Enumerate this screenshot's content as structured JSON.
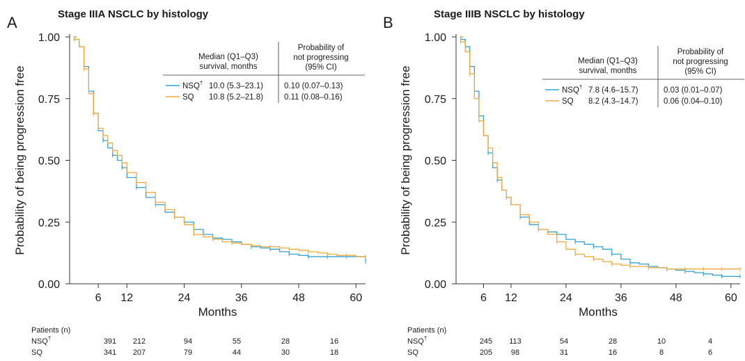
{
  "colors": {
    "NSQ": "#2ea3d6",
    "SQ": "#f2a93b",
    "axis": "#333333",
    "text": "#1a1a1a"
  },
  "chart_data": [
    {
      "type": "line",
      "panel": "A",
      "title": "Stage IIIA NSCLC by histology",
      "xlabel": "Months",
      "ylabel": "Probability of being progression free",
      "xlim": [
        0,
        62
      ],
      "ylim": [
        0,
        1
      ],
      "xticks": [
        "6",
        "12",
        "24",
        "36",
        "48",
        "60"
      ],
      "yticks": [
        "0.00",
        "0.25",
        "0.50",
        "0.75",
        "1.00"
      ],
      "table": {
        "col1_header": [
          "Median (Q1–Q3)",
          "survival, months"
        ],
        "col2_header": [
          "Probability of",
          "not progressing",
          "(95% CI)"
        ],
        "rows": [
          {
            "label": "NSQ",
            "sup": "†",
            "median": "10.0 (5.3–23.1)",
            "prob": "0.10 (0.07–0.13)"
          },
          {
            "label": "SQ",
            "sup": "",
            "median": "10.8 (5.2–21.8)",
            "prob": "0.11 (0.08–0.16)"
          }
        ]
      },
      "risk_table": {
        "header": "Patients (n)",
        "rows": [
          {
            "label": "NSQ",
            "sup": "†",
            "values": [
              "391",
              "212",
              "94",
              "55",
              "28",
              "16"
            ]
          },
          {
            "label": "SQ",
            "sup": "",
            "values": [
              "341",
              "207",
              "79",
              "44",
              "30",
              "18"
            ]
          }
        ]
      },
      "series": [
        {
          "name": "NSQ",
          "x": [
            0,
            1,
            2,
            3,
            4,
            5,
            6,
            7,
            8,
            9,
            10,
            11,
            12,
            14,
            16,
            18,
            20,
            22,
            24,
            26,
            28,
            30,
            32,
            34,
            36,
            38,
            40,
            42,
            44,
            46,
            48,
            50,
            52,
            54,
            56,
            58,
            60,
            62
          ],
          "y": [
            1.0,
            0.99,
            0.96,
            0.88,
            0.78,
            0.69,
            0.62,
            0.58,
            0.55,
            0.52,
            0.5,
            0.47,
            0.43,
            0.39,
            0.35,
            0.32,
            0.29,
            0.27,
            0.25,
            0.22,
            0.2,
            0.185,
            0.18,
            0.17,
            0.16,
            0.15,
            0.145,
            0.14,
            0.13,
            0.12,
            0.115,
            0.11,
            0.11,
            0.11,
            0.11,
            0.11,
            0.11,
            0.09
          ]
        },
        {
          "name": "SQ",
          "x": [
            0,
            1,
            2,
            3,
            4,
            5,
            6,
            7,
            8,
            9,
            10,
            11,
            12,
            14,
            16,
            18,
            20,
            22,
            24,
            26,
            28,
            30,
            32,
            34,
            36,
            38,
            40,
            42,
            44,
            46,
            48,
            50,
            52,
            54,
            56,
            58,
            60,
            62
          ],
          "y": [
            1.0,
            0.99,
            0.96,
            0.87,
            0.77,
            0.69,
            0.63,
            0.6,
            0.57,
            0.54,
            0.52,
            0.49,
            0.45,
            0.41,
            0.37,
            0.33,
            0.3,
            0.27,
            0.24,
            0.2,
            0.19,
            0.18,
            0.17,
            0.165,
            0.16,
            0.155,
            0.15,
            0.15,
            0.145,
            0.14,
            0.135,
            0.13,
            0.125,
            0.12,
            0.115,
            0.115,
            0.11,
            0.11
          ]
        }
      ]
    },
    {
      "type": "line",
      "panel": "B",
      "title": "Stage IIIB NSCLC by histology",
      "xlabel": "Months",
      "ylabel": "Probability of being progression free",
      "xlim": [
        0,
        62
      ],
      "ylim": [
        0,
        1
      ],
      "xticks": [
        "6",
        "12",
        "24",
        "36",
        "48",
        "60"
      ],
      "yticks": [
        "0.00",
        "0.25",
        "0.50",
        "0.75",
        "1.00"
      ],
      "table": {
        "col1_header": [
          "Median (Q1–Q3)",
          "survival, months"
        ],
        "col2_header": [
          "Probability of",
          "not progressing",
          "(95% CI)"
        ],
        "rows": [
          {
            "label": "NSQ",
            "sup": "†",
            "median": "7.8 (4.6–15.7)",
            "prob": "0.03 (0.01–0.07)"
          },
          {
            "label": "SQ",
            "sup": "",
            "median": "8.2 (4.3–14.7)",
            "prob": "0.06 (0.04–0.10)"
          }
        ]
      },
      "risk_table": {
        "header": "Patients (n)",
        "rows": [
          {
            "label": "NSQ",
            "sup": "†",
            "values": [
              "245",
              "113",
              "54",
              "28",
              "10",
              "4"
            ]
          },
          {
            "label": "SQ",
            "sup": "",
            "values": [
              "205",
              "98",
              "31",
              "16",
              "8",
              "6"
            ]
          }
        ]
      },
      "series": [
        {
          "name": "NSQ",
          "x": [
            0,
            1,
            2,
            3,
            4,
            5,
            6,
            7,
            8,
            9,
            10,
            11,
            12,
            14,
            16,
            18,
            20,
            22,
            24,
            26,
            28,
            30,
            32,
            34,
            36,
            38,
            40,
            42,
            44,
            46,
            48,
            50,
            52,
            54,
            56,
            58,
            60,
            62
          ],
          "y": [
            1.0,
            0.99,
            0.96,
            0.88,
            0.78,
            0.68,
            0.6,
            0.53,
            0.47,
            0.42,
            0.38,
            0.35,
            0.32,
            0.27,
            0.24,
            0.22,
            0.21,
            0.2,
            0.18,
            0.17,
            0.16,
            0.15,
            0.14,
            0.12,
            0.1,
            0.085,
            0.08,
            0.07,
            0.065,
            0.06,
            0.055,
            0.05,
            0.045,
            0.04,
            0.035,
            0.03,
            0.03,
            0.03
          ]
        },
        {
          "name": "SQ",
          "x": [
            0,
            1,
            2,
            3,
            4,
            5,
            6,
            7,
            8,
            9,
            10,
            11,
            12,
            14,
            16,
            18,
            20,
            22,
            24,
            26,
            28,
            30,
            32,
            34,
            36,
            38,
            40,
            42,
            44,
            46,
            48,
            50,
            52,
            54,
            56,
            58,
            60,
            62
          ],
          "y": [
            1.0,
            0.98,
            0.94,
            0.85,
            0.75,
            0.66,
            0.6,
            0.55,
            0.49,
            0.43,
            0.38,
            0.35,
            0.32,
            0.28,
            0.25,
            0.22,
            0.2,
            0.17,
            0.14,
            0.12,
            0.11,
            0.1,
            0.09,
            0.08,
            0.075,
            0.07,
            0.07,
            0.065,
            0.065,
            0.06,
            0.06,
            0.06,
            0.06,
            0.06,
            0.06,
            0.06,
            0.06,
            0.06
          ]
        }
      ]
    }
  ]
}
